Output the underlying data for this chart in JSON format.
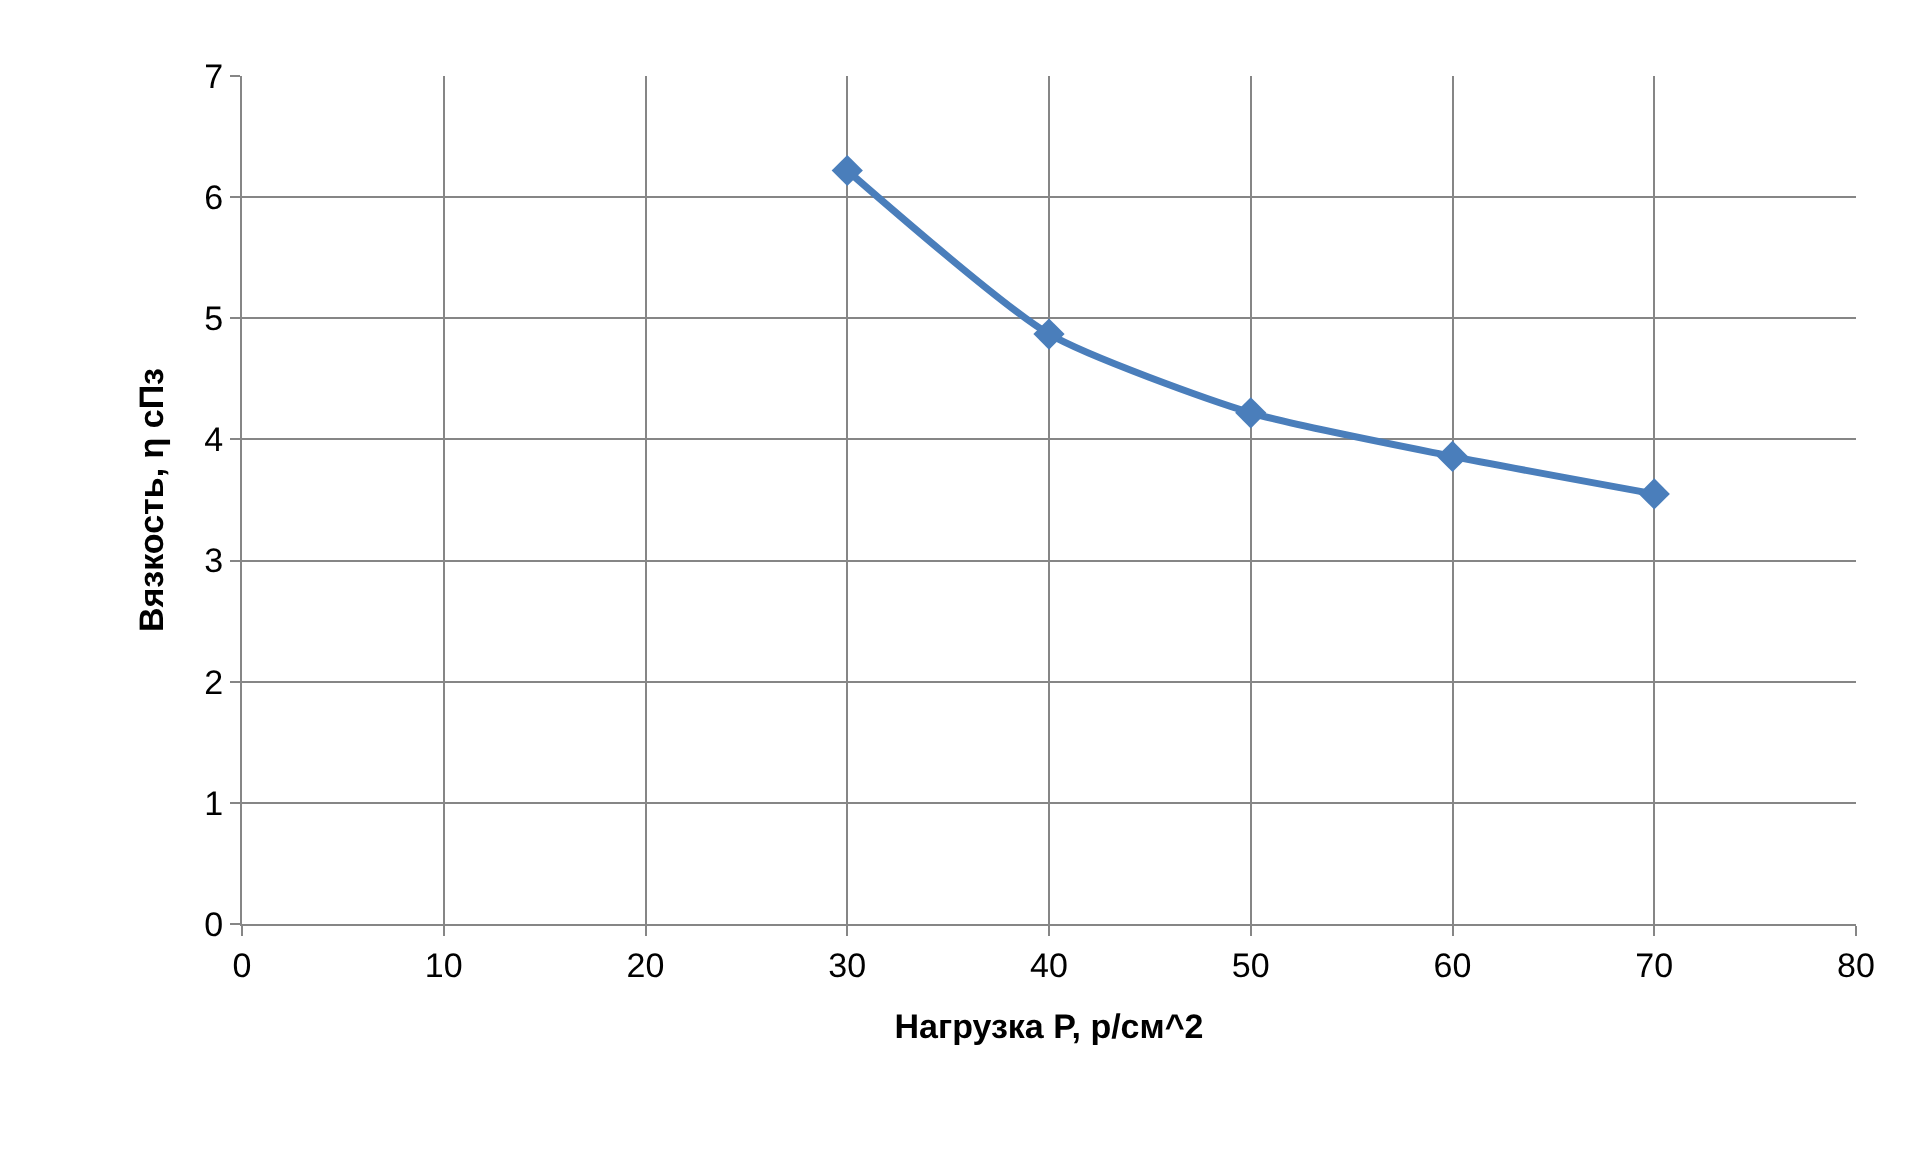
{
  "chart_data": {
    "type": "line",
    "xlabel": "Нагрузка P, р/см^2",
    "ylabel": "Вязкость, η сПз",
    "x": [
      30,
      40,
      50,
      60,
      70
    ],
    "series": [
      {
        "color": "#4a7ebb",
        "values": [
          6.22,
          4.87,
          4.22,
          3.86,
          3.55
        ]
      }
    ],
    "xlim": [
      0,
      80
    ],
    "xticks": [
      0,
      10,
      20,
      30,
      40,
      50,
      60,
      70,
      80
    ],
    "ylim": [
      0,
      7
    ],
    "yticks": [
      0,
      1,
      2,
      3,
      4,
      5,
      6,
      7
    ],
    "grid": true,
    "marker": "diamond",
    "line_style": "solid"
  }
}
